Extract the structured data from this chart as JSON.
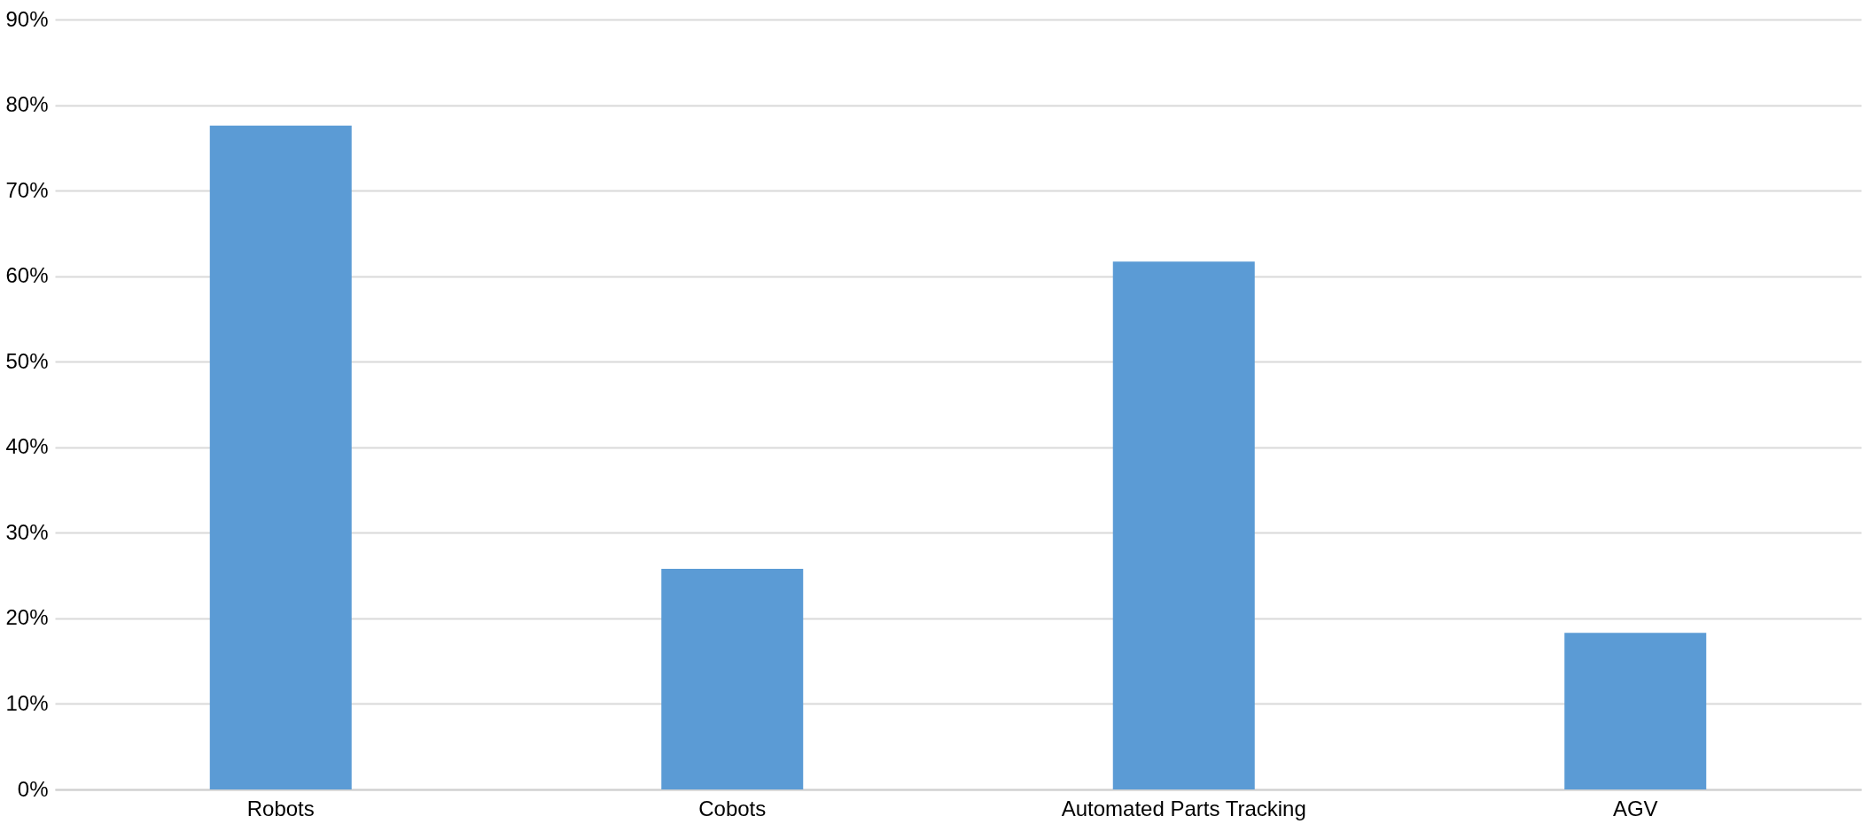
{
  "chart_data": {
    "type": "bar",
    "categories": [
      "Robots",
      "Cobots",
      "Automated Parts Tracking",
      "AGV"
    ],
    "values": [
      77.6,
      25.8,
      61.7,
      18.3
    ],
    "color": "#5b9bd5",
    "ylim": [
      0,
      90
    ],
    "yticks": [
      {
        "value": 0,
        "label": "0%"
      },
      {
        "value": 10,
        "label": "10%"
      },
      {
        "value": 20,
        "label": "20%"
      },
      {
        "value": 30,
        "label": "30%"
      },
      {
        "value": 40,
        "label": "40%"
      },
      {
        "value": 50,
        "label": "50%"
      },
      {
        "value": 60,
        "label": "60%"
      },
      {
        "value": 70,
        "label": "70%"
      },
      {
        "value": 80,
        "label": "80%"
      },
      {
        "value": 90,
        "label": "90%"
      }
    ],
    "grid": "y"
  }
}
